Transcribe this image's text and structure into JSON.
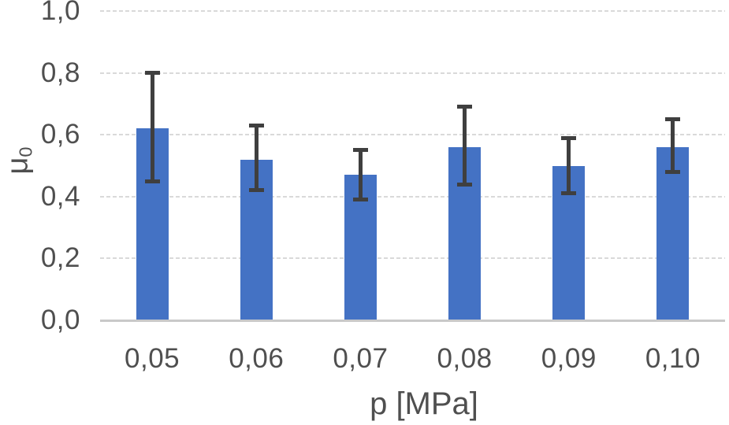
{
  "chart_data": {
    "type": "bar",
    "title": "",
    "xlabel": "p [MPa]",
    "ylabel_main": "μ",
    "ylabel_sub": "0",
    "categories": [
      "0,05",
      "0,06",
      "0,07",
      "0,08",
      "0,09",
      "0,10"
    ],
    "x_values_numeric": [
      0.05,
      0.06,
      0.07,
      0.08,
      0.09,
      0.1
    ],
    "values": [
      0.62,
      0.52,
      0.47,
      0.56,
      0.5,
      0.56
    ],
    "error_low": [
      0.45,
      0.42,
      0.39,
      0.44,
      0.41,
      0.48
    ],
    "error_high": [
      0.8,
      0.63,
      0.55,
      0.69,
      0.59,
      0.65
    ],
    "yticks": [
      {
        "label": "0,0",
        "value": 0.0
      },
      {
        "label": "0,2",
        "value": 0.2
      },
      {
        "label": "0,4",
        "value": 0.4
      },
      {
        "label": "0,6",
        "value": 0.6
      },
      {
        "label": "0,8",
        "value": 0.8
      },
      {
        "label": "1,0",
        "value": 1.0
      }
    ],
    "ylim": [
      0.0,
      1.0
    ],
    "grid": true,
    "legend": false,
    "colors": {
      "bar": "#4472c4",
      "error_bar": "#3f3f3f",
      "gridline": "#d9d9d9",
      "axis_line": "#c9c9c9",
      "text": "#4f4f4f"
    }
  }
}
